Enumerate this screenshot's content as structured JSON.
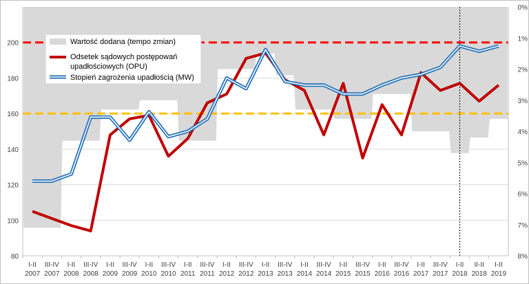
{
  "chart_data": {
    "type": "line",
    "categories": [
      [
        "I-II",
        "2007"
      ],
      [
        "III-IV",
        "2007"
      ],
      [
        "I-II",
        "2008"
      ],
      [
        "III-IV",
        "2008"
      ],
      [
        "I-II",
        "2009"
      ],
      [
        "III-IV",
        "2009"
      ],
      [
        "I-II",
        "2010"
      ],
      [
        "III-IV",
        "2010"
      ],
      [
        "I-II",
        "2011"
      ],
      [
        "III-IV",
        "2011"
      ],
      [
        "I-II",
        "2012"
      ],
      [
        "III-IV",
        "2012"
      ],
      [
        "I-II",
        "2013"
      ],
      [
        "III-IV",
        "2013"
      ],
      [
        "I-II",
        "2014"
      ],
      [
        "III-IV",
        "2014"
      ],
      [
        "I-II",
        "2015"
      ],
      [
        "III-IV",
        "2015"
      ],
      [
        "I-II",
        "2016"
      ],
      [
        "III-IV",
        "2016"
      ],
      [
        "I-II",
        "2017"
      ],
      [
        "III-IV",
        "2017"
      ],
      [
        "I-II",
        "2018"
      ],
      [
        "II-II",
        "2018"
      ],
      [
        "I-II",
        "2019"
      ]
    ],
    "y_left": {
      "lim": [
        80,
        220
      ],
      "ticks": [
        80,
        100,
        120,
        140,
        160,
        180,
        200
      ]
    },
    "y_right": {
      "lim": [
        0,
        8
      ],
      "inverted": true,
      "ticks": [
        0,
        1,
        2,
        3,
        4,
        5,
        6,
        7,
        8
      ],
      "tick_labels": [
        "0%",
        "1%",
        "2%",
        "3%",
        "4%",
        "5%",
        "6%",
        "7%",
        "8%"
      ]
    },
    "grid": true,
    "legend_placement": "top-left",
    "series": [
      {
        "name": "Wartość dodana (tempo zmian)",
        "kind": "area",
        "axis": "right",
        "color": "#d9d9d9",
        "values": [
          7.1,
          7.1,
          4.3,
          4.3,
          3.3,
          3.3,
          3.0,
          3.0,
          4.3,
          4.3,
          2.0,
          2.0,
          1.5,
          2.2,
          3.3,
          3.3,
          3.6,
          3.6,
          2.8,
          2.8,
          4.0,
          4.0,
          4.7,
          4.2,
          3.6
        ]
      },
      {
        "name": "Odsetek sądowych postępowań upadłościowych (OPU)",
        "kind": "line",
        "axis": "left",
        "color": "#c00000",
        "values": [
          105,
          101,
          97,
          94,
          148,
          157,
          159,
          136,
          146,
          166,
          171,
          191,
          194,
          179,
          173,
          148,
          177,
          135,
          165,
          148,
          183,
          173,
          177,
          167,
          176
        ]
      },
      {
        "name": "Stopień zagrożenia upadłością (MW)",
        "kind": "line",
        "axis": "left",
        "color": "#1f6eb8",
        "values": [
          122,
          122,
          126,
          158,
          158,
          145,
          161,
          147,
          150,
          157,
          180,
          174,
          196,
          178,
          176,
          176,
          171,
          171,
          176,
          180,
          182,
          186,
          198,
          195,
          198
        ]
      }
    ],
    "reference_lines": [
      {
        "axis": "left",
        "value": 200,
        "color": "#ff0000",
        "style": "dashed"
      },
      {
        "axis": "left",
        "value": 160,
        "color": "#ffc000",
        "style": "dashed"
      }
    ],
    "vertical_marker": {
      "category_index": 22,
      "style": "dotted",
      "color": "#000000"
    }
  }
}
